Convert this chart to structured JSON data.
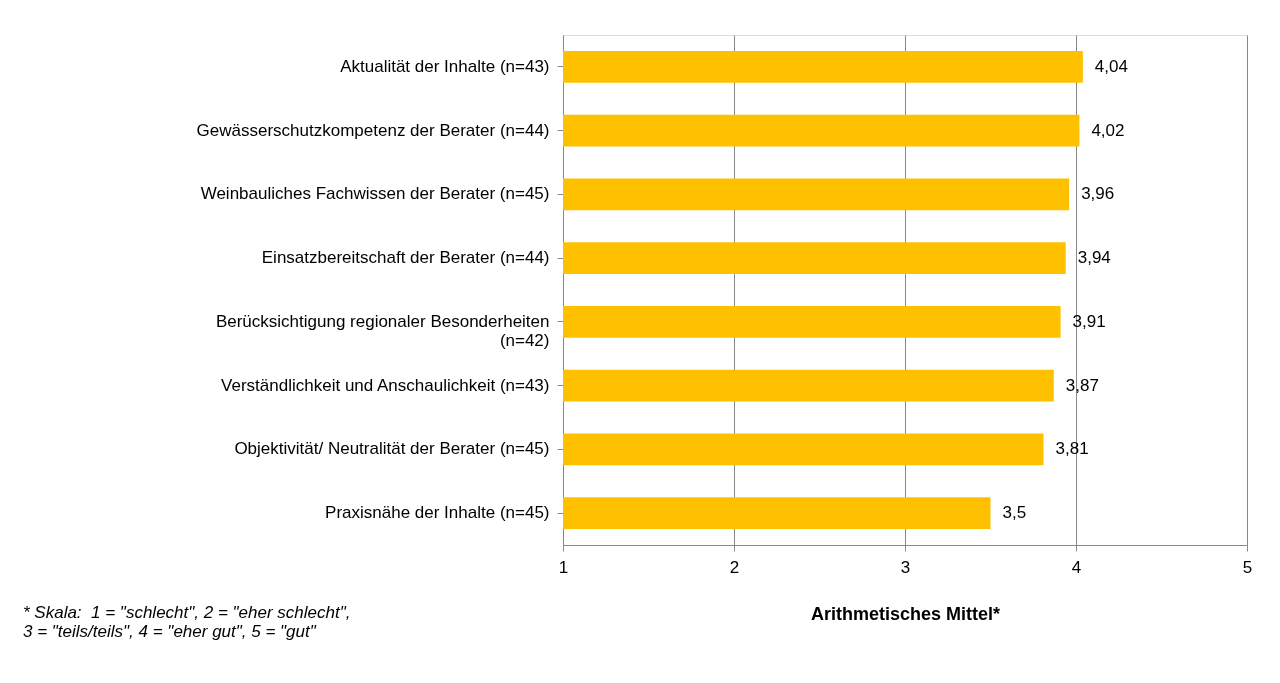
{
  "chart_data": {
    "type": "bar",
    "orientation": "horizontal",
    "categories": [
      "Aktualität der Inhalte (n=43)",
      "Gewässerschutzkompetenz der Berater (n=44)",
      "Weinbauliches Fachwissen der Berater (n=45)",
      "Einsatzbereitschaft der Berater (n=44)",
      "Berücksichtigung regionaler Besonderheiten\n(n=42)",
      "Verständlichkeit und Anschaulichkeit (n=43)",
      "Objektivität/ Neutralität der Berater (n=45)",
      "Praxisnähe der Inhalte (n=45)"
    ],
    "values": [
      4.04,
      4.02,
      3.96,
      3.94,
      3.91,
      3.87,
      3.81,
      3.5
    ],
    "color": "#ffc000",
    "xlim": [
      1,
      5
    ],
    "xticks": [
      1,
      2,
      3,
      4,
      5
    ],
    "xlabel": "Arithmetisches Mittel*",
    "grid": "x",
    "value_labels": [
      "4,04",
      "4,02",
      "3,96",
      "3,94",
      "3,91",
      "3,87",
      "3,81",
      "3,5"
    ],
    "annotations": [
      "* Skala:  1 = \"schlecht\", 2 = \"eher schlecht\",\n       3 = \"teils/teils\", 4 = \"eher gut\", 5 = \"gut\""
    ]
  }
}
